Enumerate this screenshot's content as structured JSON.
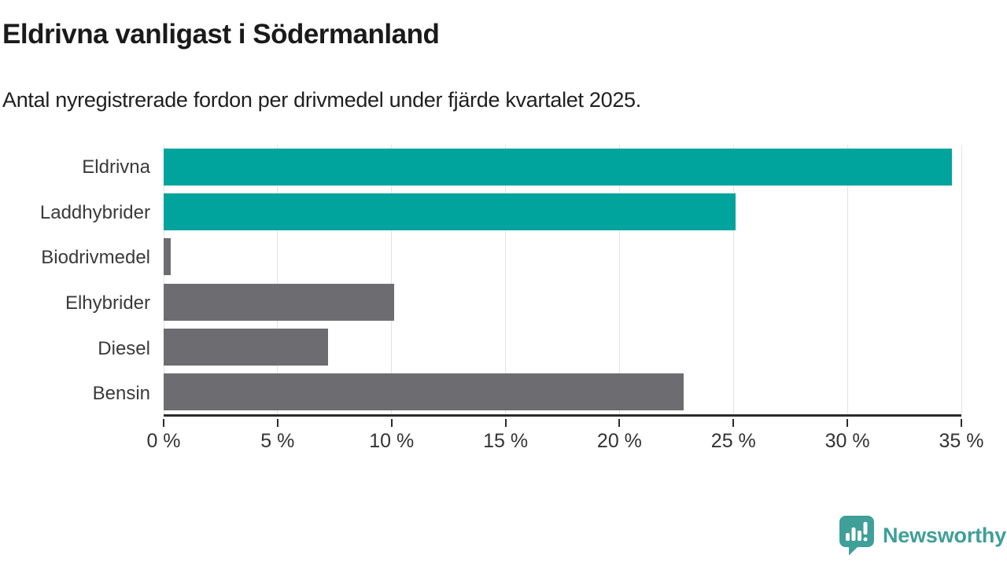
{
  "title": "Eldrivna vanligast i Södermanland",
  "subtitle": "Antal nyregistrerade fordon per drivmedel under fjärde kvartalet 2025.",
  "chart_data": {
    "type": "bar",
    "orientation": "horizontal",
    "categories": [
      "Eldrivna",
      "Laddhybrider",
      "Biodrivmedel",
      "Elhybrider",
      "Diesel",
      "Bensin"
    ],
    "values": [
      34.6,
      25.1,
      0.3,
      10.1,
      7.2,
      22.8
    ],
    "unit": "%",
    "bar_colors": [
      "#00a49c",
      "#00a49c",
      "#6c6c71",
      "#6c6c71",
      "#6c6c71",
      "#6c6c71"
    ],
    "xlabel": "",
    "ylabel": "",
    "xlim": [
      0,
      35
    ],
    "x_tick_values": [
      0,
      5,
      10,
      15,
      20,
      25,
      30,
      35
    ],
    "x_tick_labels": [
      "0 %",
      "5 %",
      "10 %",
      "15 %",
      "20 %",
      "25 %",
      "30 %",
      "35 %"
    ],
    "grid": true,
    "legend": false
  },
  "colors": {
    "accent": "#00a49c",
    "neutral_bar": "#6c6c71",
    "axis": "#2b2b2b",
    "gridline": "#e3e3e3",
    "text": "#1a1a1a"
  },
  "branding": {
    "logo_text": "Newsworthy",
    "logo_color": "#3f9f99",
    "logo_icon": "bar-chart-speech-bubble-icon"
  }
}
